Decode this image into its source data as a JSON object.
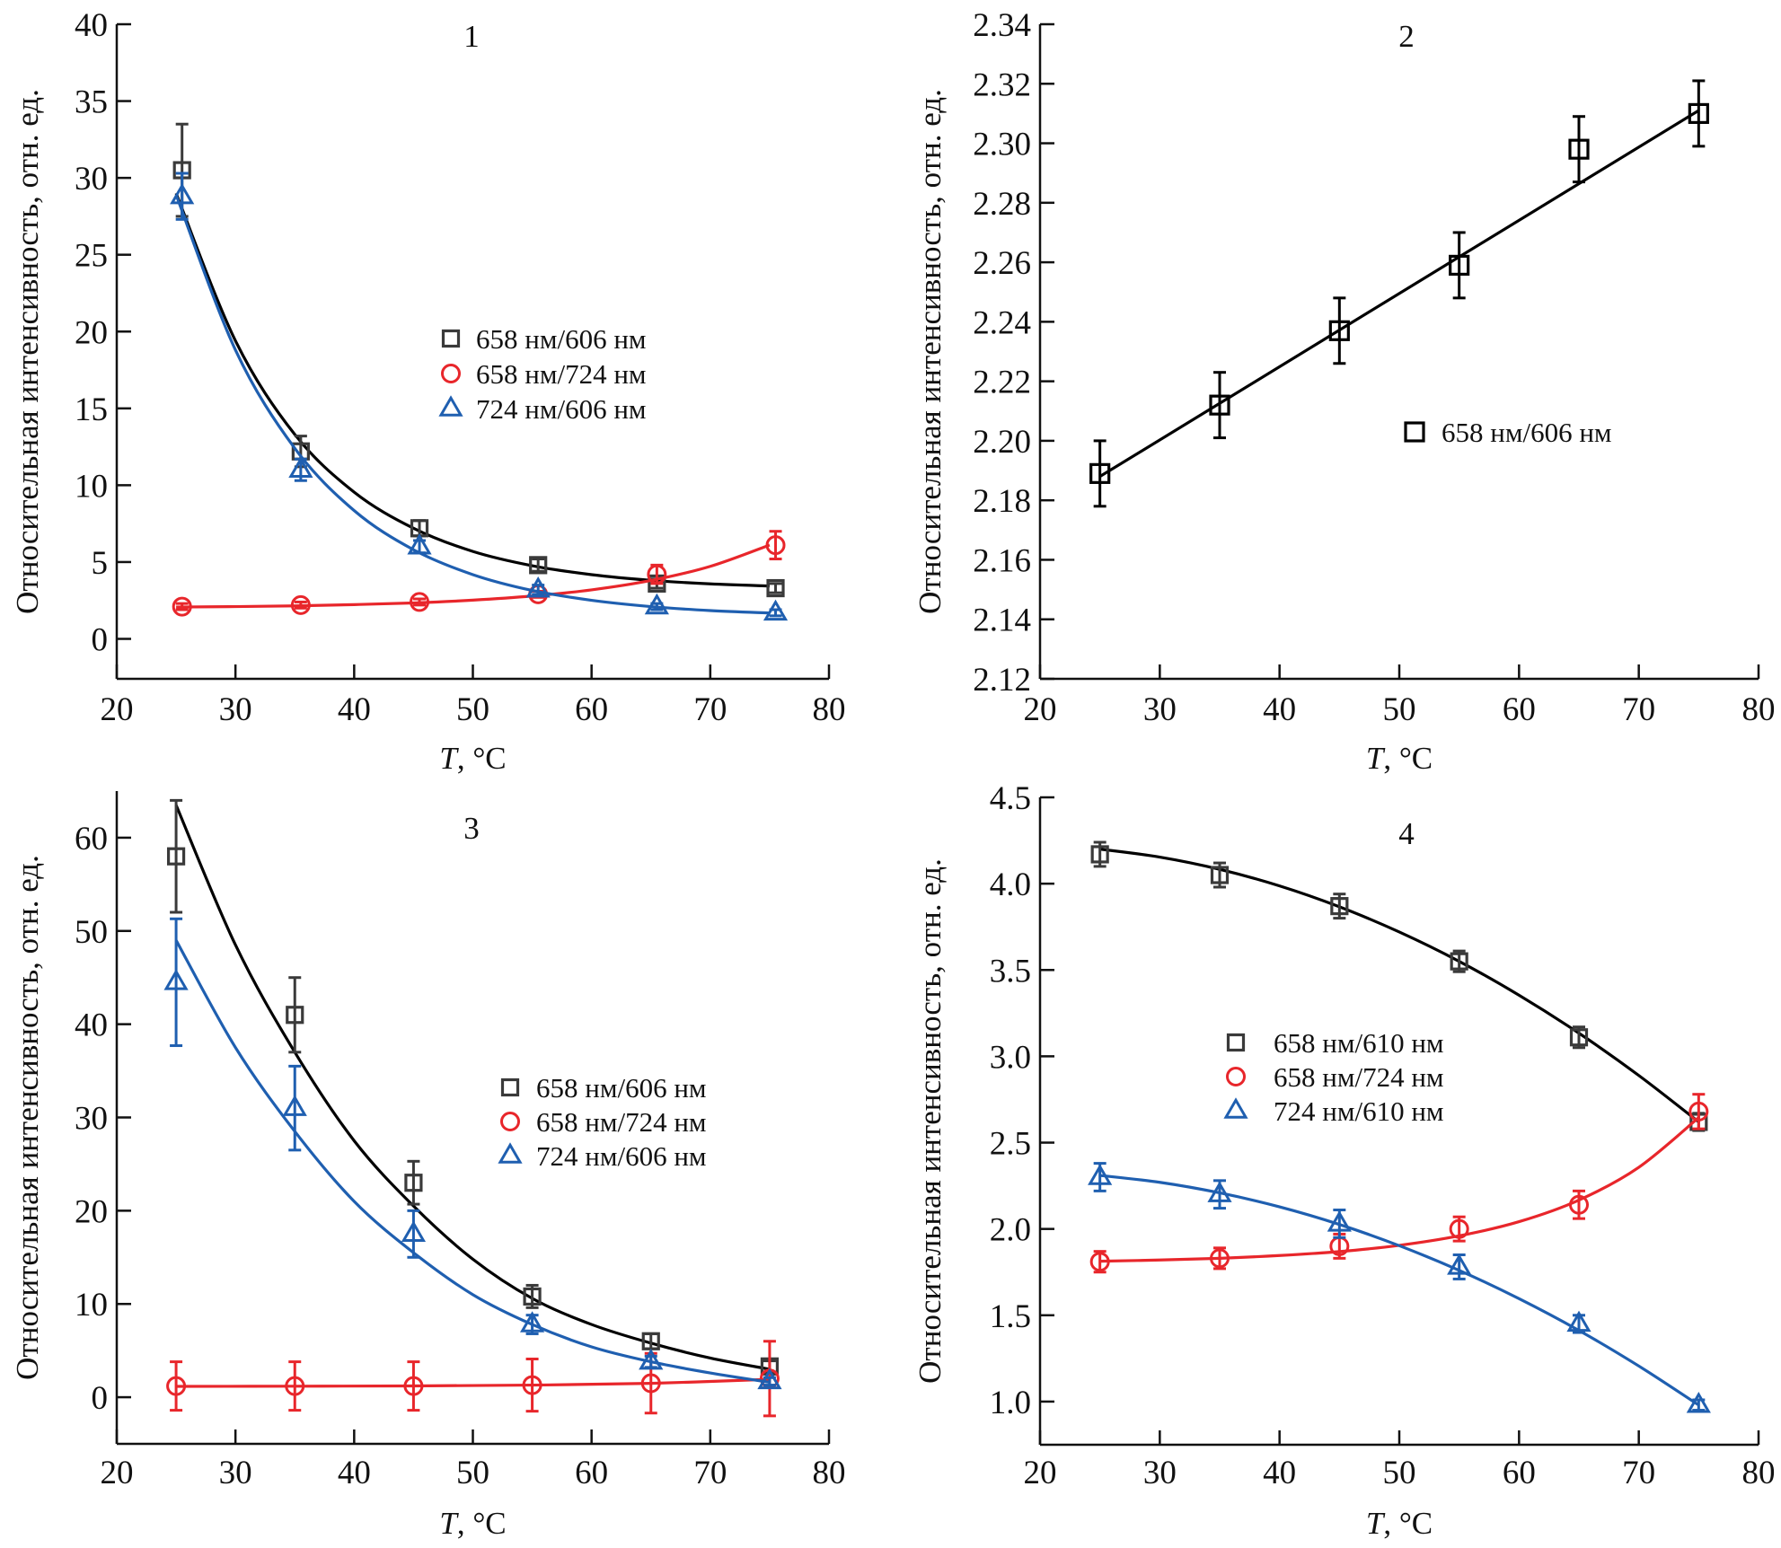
{
  "colors": {
    "black_curve": "#000000",
    "square_marker": "#3a3a3a",
    "red": "#e8262b",
    "blue": "#1f5fb0"
  },
  "chart_data": [
    {
      "type": "scatter",
      "title": "1",
      "xlabel_var": "T",
      "xlabel_unit": ", °C",
      "ylabel": "Относительная интенсивность, отн. ед.",
      "xlim": [
        20,
        80
      ],
      "ylim": [
        -2.6,
        40
      ],
      "xticks": [
        20,
        30,
        40,
        50,
        60,
        70,
        80
      ],
      "yticks": [
        0,
        5,
        10,
        15,
        20,
        25,
        30,
        35,
        40
      ],
      "legend_placement": "center-right",
      "series": [
        {
          "name": "658 нм/606 нм",
          "marker": "square",
          "color": "#3a3a3a",
          "curve_color": "#000000",
          "x": [
            25.5,
            35.5,
            45.5,
            55.5,
            65.5,
            75.5
          ],
          "y": [
            30.5,
            12.2,
            7.2,
            4.8,
            3.6,
            3.3
          ],
          "err": [
            3,
            1,
            0.5,
            0.4,
            0.3,
            0.3
          ],
          "curve": {
            "x": [
              25,
              30,
              35,
              40,
              45,
              50,
              55,
              60,
              65,
              70,
              75
            ],
            "y": [
              29.0,
              19.4,
              13.3,
              9.55,
              7.2,
              5.69,
              4.76,
              4.18,
              3.81,
              3.58,
              3.44
            ]
          }
        },
        {
          "name": "658 нм/724 нм",
          "marker": "circle",
          "color": "#e8262b",
          "curve_color": "#e8262b",
          "x": [
            25.5,
            35.5,
            45.5,
            55.5,
            65.5,
            75.5
          ],
          "y": [
            2.1,
            2.2,
            2.4,
            2.9,
            4.2,
            6.1
          ],
          "err": [
            0.2,
            0.2,
            0.2,
            0.2,
            0.6,
            0.9
          ],
          "curve": {
            "x": [
              25,
              30,
              35,
              40,
              45,
              50,
              55,
              60,
              65,
              70,
              75
            ],
            "y": [
              2.07,
              2.1,
              2.15,
              2.23,
              2.34,
              2.52,
              2.79,
              3.19,
              3.8,
              4.72,
              6.11
            ]
          }
        },
        {
          "name": "724 нм/606 нм",
          "marker": "triangle",
          "color": "#1f5fb0",
          "curve_color": "#1f5fb0",
          "x": [
            25.5,
            35.5,
            45.5,
            55.5,
            65.5,
            75.5
          ],
          "y": [
            28.8,
            11.0,
            6.0,
            3.2,
            2.1,
            1.7
          ],
          "err": [
            1.5,
            0.7,
            0.4,
            0.3,
            0.2,
            0.2
          ],
          "curve": {
            "x": [
              25,
              30,
              35,
              40,
              45,
              50,
              55,
              60,
              65,
              70,
              75
            ],
            "y": [
              28.9,
              18.8,
              12.4,
              8.35,
              5.8,
              4.18,
              3.15,
              2.51,
              2.1,
              1.84,
              1.68
            ]
          }
        }
      ]
    },
    {
      "type": "scatter",
      "title": "2",
      "xlabel_var": "T",
      "xlabel_unit": ", °C",
      "ylabel": "Относительная интенсивность, отн. ед.",
      "xlim": [
        20,
        80
      ],
      "ylim": [
        2.12,
        2.34
      ],
      "xticks": [
        20,
        30,
        40,
        50,
        60,
        70,
        80
      ],
      "yticks": [
        2.12,
        2.14,
        2.16,
        2.18,
        2.2,
        2.22,
        2.24,
        2.26,
        2.28,
        2.3,
        2.32,
        2.34
      ],
      "ytick_decimals": 2,
      "legend_placement": "center-right",
      "series": [
        {
          "name": "658 нм/606 нм",
          "marker": "square-black",
          "color": "#000000",
          "curve_color": "#000000",
          "x": [
            25,
            35,
            45,
            55,
            65,
            75
          ],
          "y": [
            2.189,
            2.212,
            2.237,
            2.259,
            2.298,
            2.31
          ],
          "err": [
            0.011,
            0.011,
            0.011,
            0.011,
            0.011,
            0.011
          ],
          "curve": {
            "x": [
              25,
              75
            ],
            "y": [
              2.188,
              2.311
            ]
          }
        }
      ]
    },
    {
      "type": "scatter",
      "title": "3",
      "xlabel_var": "T",
      "xlabel_unit": ", °C",
      "ylabel": "Относительная интенсивность, отн. ед.",
      "xlim": [
        20,
        80
      ],
      "ylim": [
        -5,
        65
      ],
      "xticks": [
        20,
        30,
        40,
        50,
        60,
        70,
        80
      ],
      "yticks": [
        0,
        10,
        20,
        30,
        40,
        50,
        60
      ],
      "legend_placement": "center-right",
      "series": [
        {
          "name": "658 нм/606 нм",
          "marker": "square",
          "color": "#3a3a3a",
          "curve_color": "#000000",
          "x": [
            25,
            35,
            45,
            55,
            65,
            75
          ],
          "y": [
            58,
            41,
            23,
            10.8,
            6,
            3.3
          ],
          "err": [
            6,
            4,
            2.3,
            1.2,
            0.8,
            0.6
          ],
          "curve": {
            "x": [
              25,
              30,
              35,
              40,
              45,
              50,
              55,
              60,
              65,
              70,
              75
            ],
            "y": [
              63.5,
              48.5,
              37,
              27.5,
              20.5,
              14.8,
              10.6,
              7.8,
              5.8,
              4.2,
              3.0
            ]
          }
        },
        {
          "name": "658 нм/724 нм",
          "marker": "circle",
          "color": "#e8262b",
          "curve_color": "#e8262b",
          "x": [
            25,
            35,
            45,
            55,
            65,
            75
          ],
          "y": [
            1.2,
            1.2,
            1.2,
            1.3,
            1.5,
            2.0
          ],
          "err": [
            2.6,
            2.6,
            2.6,
            2.8,
            3.2,
            4.0
          ],
          "curve": {
            "x": [
              25,
              35,
              45,
              55,
              65,
              75
            ],
            "y": [
              1.16,
              1.18,
              1.21,
              1.3,
              1.49,
              1.92
            ]
          }
        },
        {
          "name": "724 нм/606 нм",
          "marker": "triangle",
          "color": "#1f5fb0",
          "curve_color": "#1f5fb0",
          "x": [
            25,
            35,
            45,
            55,
            65,
            75
          ],
          "y": [
            44.5,
            31,
            17.5,
            7.8,
            3.8,
            1.7
          ],
          "err": [
            6.8,
            4.5,
            2.5,
            1,
            0.6,
            0.4
          ],
          "curve": {
            "x": [
              25,
              30,
              35,
              40,
              45,
              50,
              55,
              60,
              65,
              70,
              75
            ],
            "y": [
              49,
              37.5,
              28.5,
              21,
              15.5,
              11,
              7.8,
              5.4,
              3.8,
              2.6,
              1.6
            ]
          }
        }
      ]
    },
    {
      "type": "scatter",
      "title": "4",
      "xlabel_var": "T",
      "xlabel_unit": ", °C",
      "ylabel": "Относительная интенсивность, отн. ед.",
      "xlim": [
        20,
        80
      ],
      "ylim": [
        0.75,
        4.5
      ],
      "xticks": [
        20,
        30,
        40,
        50,
        60,
        70,
        80
      ],
      "yticks": [
        1.0,
        1.5,
        2.0,
        2.5,
        3.0,
        3.5,
        4.0,
        4.5
      ],
      "ytick_decimals": 1,
      "legend_placement": "center",
      "series": [
        {
          "name": "658 нм/610 нм",
          "marker": "square",
          "color": "#3a3a3a",
          "curve_color": "#000000",
          "x": [
            25,
            35,
            45,
            55,
            65,
            75
          ],
          "y": [
            4.17,
            4.05,
            3.87,
            3.55,
            3.11,
            2.62
          ],
          "err": [
            0.07,
            0.07,
            0.07,
            0.06,
            0.06,
            0.05
          ],
          "curve": {
            "x": [
              25,
              30,
              35,
              40,
              45,
              50,
              55,
              60,
              65,
              70,
              75
            ],
            "y": [
              4.2,
              4.154,
              4.083,
              3.987,
              3.866,
              3.72,
              3.55,
              3.354,
              3.134,
              2.889,
              2.62
            ]
          }
        },
        {
          "name": "658 нм/724 нм",
          "marker": "circle",
          "color": "#e8262b",
          "curve_color": "#e8262b",
          "x": [
            25,
            35,
            45,
            55,
            65,
            75
          ],
          "y": [
            1.81,
            1.83,
            1.9,
            2.0,
            2.14,
            2.68
          ],
          "err": [
            0.06,
            0.06,
            0.07,
            0.07,
            0.08,
            0.1
          ],
          "curve": {
            "x": [
              25,
              30,
              35,
              40,
              45,
              50,
              55,
              60,
              65,
              70,
              75
            ],
            "y": [
              1.813,
              1.82,
              1.83,
              1.846,
              1.869,
              1.905,
              1.96,
              2.042,
              2.167,
              2.357,
              2.645
            ]
          }
        },
        {
          "name": "724 нм/610 нм",
          "marker": "triangle",
          "color": "#1f5fb0",
          "curve_color": "#1f5fb0",
          "x": [
            25,
            35,
            45,
            55,
            65,
            75
          ],
          "y": [
            2.3,
            2.2,
            2.03,
            1.78,
            1.45,
            0.98
          ],
          "err": [
            0.08,
            0.08,
            0.08,
            0.07,
            0.05,
            0.03
          ],
          "curve": {
            "x": [
              25,
              30,
              35,
              40,
              45,
              50,
              55,
              60,
              65,
              70,
              75
            ],
            "y": [
              2.31,
              2.27,
              2.209,
              2.128,
              2.026,
              1.903,
              1.76,
              1.596,
              1.412,
              1.206,
              0.98
            ]
          }
        }
      ]
    }
  ]
}
